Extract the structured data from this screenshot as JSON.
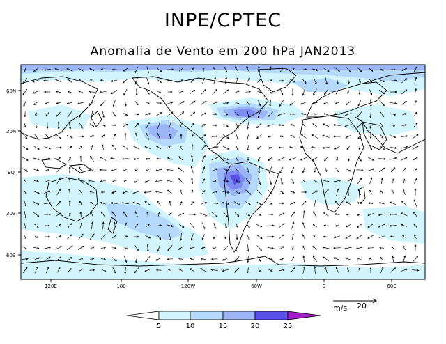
{
  "header": {
    "title": "INPE/CPTEC",
    "subtitle": "Anomalia de Vento em 200 hPa JAN2013"
  },
  "axes": {
    "x_ticks": [
      "120E",
      "180",
      "120W",
      "60W",
      "0",
      "60E"
    ],
    "y_ticks": [
      "60N",
      "30N",
      "EQ",
      "30S",
      "60S"
    ]
  },
  "colorbar": {
    "levels": [
      "5",
      "10",
      "15",
      "20",
      "25"
    ],
    "colors": [
      "#ffffff",
      "#d2f4fc",
      "#b4d9fa",
      "#9ab4f5",
      "#7c8cf0",
      "#5a50e8",
      "#a020c8"
    ]
  },
  "reference_vector": {
    "unit": "m/s",
    "value": "20"
  },
  "colors": {
    "coast": "#000000",
    "arrow": "#000000"
  }
}
